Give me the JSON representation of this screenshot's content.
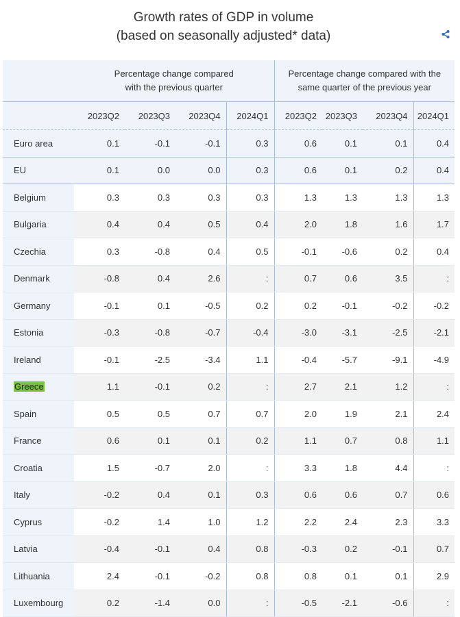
{
  "title": {
    "line1": "Growth rates of GDP in volume",
    "line2": "(based on seasonally adjusted* data)"
  },
  "icons": {
    "share": "share-icon"
  },
  "colors": {
    "header_bg": "#eff4fb",
    "alt_row_bg": "#f2f2f2",
    "rule": "#a9bcd6",
    "highlight": "#7ac142"
  },
  "table": {
    "group_headers": [
      "Percentage change compared with the previous quarter",
      "Percentage change compared with the same quarter of the previous year"
    ],
    "group_headers_lines": [
      [
        "Percentage change compared",
        "with the previous quarter"
      ],
      [
        "Percentage change compared with the",
        "same quarter of the previous year"
      ]
    ],
    "periods": [
      "2023Q2",
      "2023Q3",
      "2023Q4",
      "2024Q1",
      "2023Q2",
      "2023Q3",
      "2023Q4",
      "2024Q1"
    ],
    "rows": [
      {
        "country": "Euro area",
        "values": [
          "0.1",
          "-0.1",
          "-0.1",
          "0.3",
          "0.6",
          "0.1",
          "0.1",
          "0.4"
        ]
      },
      {
        "country": "EU",
        "values": [
          "0.1",
          "0.0",
          "0.0",
          "0.3",
          "0.6",
          "0.1",
          "0.2",
          "0.4"
        ]
      },
      {
        "country": "Belgium",
        "values": [
          "0.3",
          "0.3",
          "0.3",
          "0.3",
          "1.3",
          "1.3",
          "1.3",
          "1.3"
        ]
      },
      {
        "country": "Bulgaria",
        "values": [
          "0.4",
          "0.4",
          "0.5",
          "0.4",
          "2.0",
          "1.8",
          "1.6",
          "1.7"
        ]
      },
      {
        "country": "Czechia",
        "values": [
          "0.3",
          "-0.8",
          "0.4",
          "0.5",
          "-0.1",
          "-0.6",
          "0.2",
          "0.4"
        ]
      },
      {
        "country": "Denmark",
        "values": [
          "-0.8",
          "0.4",
          "2.6",
          ":",
          "0.7",
          "0.6",
          "3.5",
          ":"
        ]
      },
      {
        "country": "Germany",
        "values": [
          "-0.1",
          "0.1",
          "-0.5",
          "0.2",
          "0.2",
          "-0.1",
          "-0.2",
          "-0.2"
        ]
      },
      {
        "country": "Estonia",
        "values": [
          "-0.3",
          "-0.8",
          "-0.7",
          "-0.4",
          "-3.0",
          "-3.1",
          "-2.5",
          "-2.1"
        ]
      },
      {
        "country": "Ireland",
        "values": [
          "-0.1",
          "-2.5",
          "-3.4",
          "1.1",
          "-0.4",
          "-5.7",
          "-9.1",
          "-4.9"
        ]
      },
      {
        "country": "Greece",
        "values": [
          "1.1",
          "-0.1",
          "0.2",
          ":",
          "2.7",
          "2.1",
          "1.2",
          ":"
        ]
      },
      {
        "country": "Spain",
        "values": [
          "0.5",
          "0.5",
          "0.7",
          "0.7",
          "2.0",
          "1.9",
          "2.1",
          "2.4"
        ]
      },
      {
        "country": "France",
        "values": [
          "0.6",
          "0.1",
          "0.1",
          "0.2",
          "1.1",
          "0.7",
          "0.8",
          "1.1"
        ]
      },
      {
        "country": "Croatia",
        "values": [
          "1.5",
          "-0.7",
          "2.0",
          ":",
          "3.3",
          "1.8",
          "4.4",
          ":"
        ]
      },
      {
        "country": "Italy",
        "values": [
          "-0.2",
          "0.4",
          "0.1",
          "0.3",
          "0.6",
          "0.6",
          "0.7",
          "0.6"
        ]
      },
      {
        "country": "Cyprus",
        "values": [
          "-0.2",
          "1.4",
          "1.0",
          "1.2",
          "2.2",
          "2.4",
          "2.3",
          "3.3"
        ]
      },
      {
        "country": "Latvia",
        "values": [
          "-0.4",
          "-0.1",
          "0.4",
          "0.8",
          "-0.3",
          "0.2",
          "-0.1",
          "0.7"
        ]
      },
      {
        "country": "Lithuania",
        "values": [
          "2.4",
          "-0.1",
          "-0.2",
          "0.8",
          "0.8",
          "0.1",
          "0.1",
          "2.9"
        ]
      },
      {
        "country": "Luxembourg",
        "values": [
          "0.2",
          "-1.4",
          "0.0",
          ":",
          "-0.5",
          "-2.1",
          "-0.6",
          ":"
        ]
      }
    ]
  }
}
